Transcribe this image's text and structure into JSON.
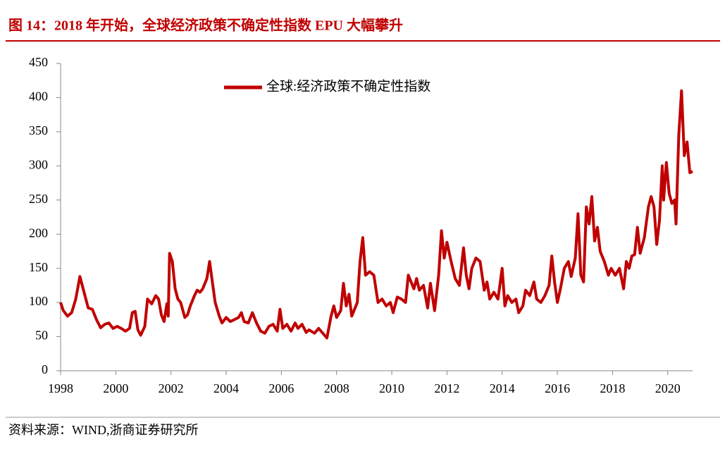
{
  "chart_data": {
    "type": "line",
    "title": "图 14：2018 年开始，全球经济政策不确定性指数 EPU 大幅攀升",
    "source": "资料来源：WIND,浙商证券研究所",
    "legend_position": "top",
    "xlim": [
      1998,
      2020.9
    ],
    "xticks": [
      1998,
      2000,
      2002,
      2004,
      2006,
      2008,
      2010,
      2012,
      2014,
      2016,
      2018,
      2020
    ],
    "ylim": [
      0,
      450
    ],
    "yticks": [
      0,
      50,
      100,
      150,
      200,
      250,
      300,
      350,
      400,
      450
    ],
    "x": [
      1998.0,
      1998.1,
      1998.25,
      1998.4,
      1998.55,
      1998.7,
      1998.85,
      1999.0,
      1999.15,
      1999.3,
      1999.45,
      1999.6,
      1999.75,
      1999.9,
      2000.05,
      2000.2,
      2000.35,
      2000.5,
      2000.6,
      2000.7,
      2000.8,
      2000.9,
      2001.05,
      2001.15,
      2001.3,
      2001.45,
      2001.55,
      2001.65,
      2001.75,
      2001.85,
      2001.9,
      2001.95,
      2002.05,
      2002.15,
      2002.25,
      2002.35,
      2002.5,
      2002.6,
      2002.7,
      2002.85,
      2002.95,
      2003.05,
      2003.15,
      2003.3,
      2003.4,
      2003.5,
      2003.6,
      2003.75,
      2003.85,
      2004.0,
      2004.15,
      2004.3,
      2004.45,
      2004.55,
      2004.65,
      2004.8,
      2004.95,
      2005.1,
      2005.25,
      2005.4,
      2005.55,
      2005.7,
      2005.85,
      2005.95,
      2006.05,
      2006.2,
      2006.35,
      2006.5,
      2006.6,
      2006.75,
      2006.9,
      2007.0,
      2007.2,
      2007.35,
      2007.5,
      2007.65,
      2007.8,
      2007.9,
      2008.0,
      2008.15,
      2008.25,
      2008.35,
      2008.45,
      2008.55,
      2008.65,
      2008.75,
      2008.85,
      2008.95,
      2009.05,
      2009.2,
      2009.35,
      2009.5,
      2009.65,
      2009.8,
      2009.95,
      2010.05,
      2010.2,
      2010.35,
      2010.5,
      2010.6,
      2010.7,
      2010.8,
      2010.9,
      2011.0,
      2011.15,
      2011.3,
      2011.4,
      2011.55,
      2011.7,
      2011.8,
      2011.9,
      2012.0,
      2012.15,
      2012.3,
      2012.45,
      2012.6,
      2012.7,
      2012.8,
      2012.9,
      2013.05,
      2013.2,
      2013.35,
      2013.45,
      2013.55,
      2013.7,
      2013.85,
      2014.0,
      2014.1,
      2014.2,
      2014.35,
      2014.5,
      2014.6,
      2014.75,
      2014.85,
      2015.0,
      2015.15,
      2015.25,
      2015.4,
      2015.55,
      2015.7,
      2015.8,
      2015.9,
      2016.0,
      2016.1,
      2016.25,
      2016.4,
      2016.5,
      2016.65,
      2016.75,
      2016.85,
      2016.95,
      2017.05,
      2017.15,
      2017.25,
      2017.35,
      2017.45,
      2017.55,
      2017.7,
      2017.85,
      2017.95,
      2018.1,
      2018.25,
      2018.4,
      2018.5,
      2018.6,
      2018.7,
      2018.8,
      2018.9,
      2019.0,
      2019.15,
      2019.3,
      2019.4,
      2019.5,
      2019.6,
      2019.7,
      2019.8,
      2019.85,
      2019.95,
      2020.05,
      2020.15,
      2020.25,
      2020.3,
      2020.4,
      2020.5,
      2020.6,
      2020.7,
      2020.8,
      2020.9
    ],
    "series": [
      {
        "name": "全球:经济政策不确定性指数",
        "color": "#c00000",
        "values": [
          100,
          88,
          80,
          85,
          105,
          138,
          115,
          92,
          90,
          75,
          63,
          68,
          70,
          62,
          65,
          62,
          58,
          62,
          85,
          87,
          60,
          52,
          65,
          105,
          98,
          110,
          105,
          82,
          72,
          98,
          80,
          172,
          160,
          120,
          105,
          100,
          78,
          82,
          95,
          110,
          118,
          115,
          120,
          135,
          160,
          130,
          100,
          80,
          70,
          78,
          72,
          75,
          78,
          85,
          72,
          70,
          85,
          70,
          58,
          55,
          65,
          68,
          58,
          90,
          62,
          68,
          58,
          70,
          62,
          68,
          56,
          60,
          55,
          62,
          55,
          48,
          80,
          95,
          78,
          88,
          128,
          95,
          112,
          80,
          90,
          100,
          160,
          195,
          140,
          145,
          140,
          100,
          105,
          95,
          100,
          85,
          108,
          105,
          100,
          140,
          130,
          120,
          135,
          118,
          125,
          92,
          128,
          88,
          140,
          205,
          165,
          188,
          160,
          135,
          125,
          180,
          140,
          120,
          150,
          165,
          160,
          118,
          130,
          105,
          115,
          105,
          150,
          95,
          110,
          100,
          105,
          85,
          95,
          118,
          110,
          130,
          105,
          100,
          110,
          125,
          168,
          130,
          100,
          118,
          150,
          160,
          138,
          165,
          230,
          140,
          130,
          240,
          215,
          255,
          190,
          210,
          175,
          160,
          140,
          150,
          140,
          150,
          120,
          160,
          150,
          168,
          170,
          210,
          172,
          195,
          240,
          255,
          240,
          185,
          220,
          300,
          250,
          305,
          260,
          245,
          250,
          215,
          345,
          410,
          315,
          335,
          290,
          292
        ]
      }
    ]
  }
}
